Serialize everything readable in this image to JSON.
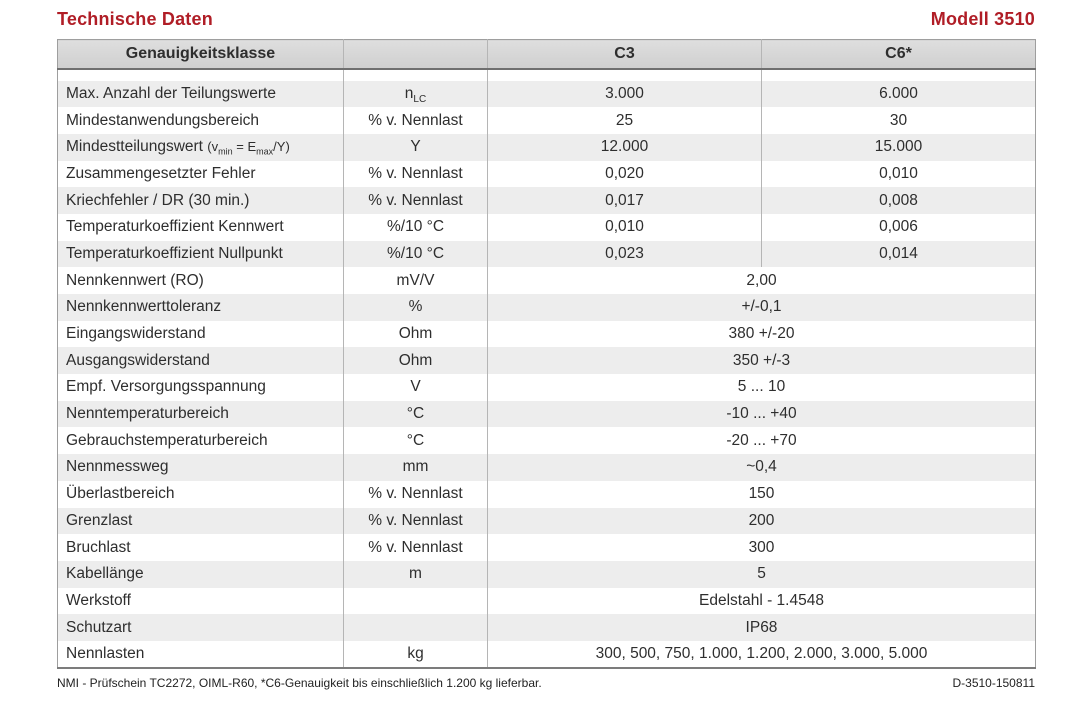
{
  "page": {
    "title": "Technische Daten",
    "model": "Modell 3510",
    "accent_color": "#b01d26"
  },
  "table": {
    "headers": {
      "col1": "Genauigkeitsklasse",
      "col2": "",
      "col3": "C3",
      "col4": "C6*"
    },
    "rows": [
      {
        "label": "Max. Anzahl der Teilungswerte",
        "unit": "n_{LC}",
        "c3": "3.000",
        "c6": "6.000"
      },
      {
        "label": "Mindestanwendungsbereich",
        "unit": "% v. Nennlast",
        "c3": "25",
        "c6": "30"
      },
      {
        "label": "Mindestteilungswert",
        "note": "(v_{min} = E_{max}/Y)",
        "unit": "Y",
        "c3": "12.000",
        "c6": "15.000"
      },
      {
        "label": "Zusammengesetzter Fehler",
        "unit": "% v. Nennlast",
        "c3": "0,020",
        "c6": "0,010"
      },
      {
        "label": "Kriechfehler / DR (30 min.)",
        "unit": "% v. Nennlast",
        "c3": "0,017",
        "c6": "0,008"
      },
      {
        "label": "Temperaturkoeffizient Kennwert",
        "unit": "%/10 °C",
        "c3": "0,010",
        "c6": "0,006"
      },
      {
        "label": "Temperaturkoeffizient Nullpunkt",
        "unit": "%/10 °C",
        "c3": "0,023",
        "c6": "0,014"
      },
      {
        "label": "Nennkennwert (RO)",
        "unit": "mV/V",
        "value": "2,00"
      },
      {
        "label": "Nennkennwerttoleranz",
        "unit": "%",
        "value": "+/-0,1"
      },
      {
        "label": "Eingangswiderstand",
        "unit": "Ohm",
        "value": "380 +/-20"
      },
      {
        "label": "Ausgangswiderstand",
        "unit": "Ohm",
        "value": "350 +/-3"
      },
      {
        "label": "Empf. Versorgungsspannung",
        "unit": "V",
        "value": "5 ... 10"
      },
      {
        "label": "Nenntemperaturbereich",
        "unit": "°C",
        "value": "-10 ... +40"
      },
      {
        "label": "Gebrauchstemperaturbereich",
        "unit": "°C",
        "value": "-20 ... +70"
      },
      {
        "label": "Nennmessweg",
        "unit": "mm",
        "value": "~0,4"
      },
      {
        "label": "Überlastbereich",
        "unit": "% v. Nennlast",
        "value": "150"
      },
      {
        "label": "Grenzlast",
        "unit": "% v. Nennlast",
        "value": "200"
      },
      {
        "label": "Bruchlast",
        "unit": "% v. Nennlast",
        "value": "300"
      },
      {
        "label": "Kabellänge",
        "unit": "m",
        "value": "5"
      },
      {
        "label": "Werkstoff",
        "unit": "",
        "value": "Edelstahl - 1.4548"
      },
      {
        "label": "Schutzart",
        "unit": "",
        "value": "IP68"
      },
      {
        "label": "Nennlasten",
        "unit": "kg",
        "value": "300, 500, 750, 1.000, 1.200, 2.000, 3.000, 5.000"
      }
    ]
  },
  "footer": {
    "left": "NMI - Prüfschein TC2272, OIML-R60, *C6-Genauigkeit bis einschließlich 1.200 kg lieferbar.",
    "right": "D-3510-150811"
  }
}
